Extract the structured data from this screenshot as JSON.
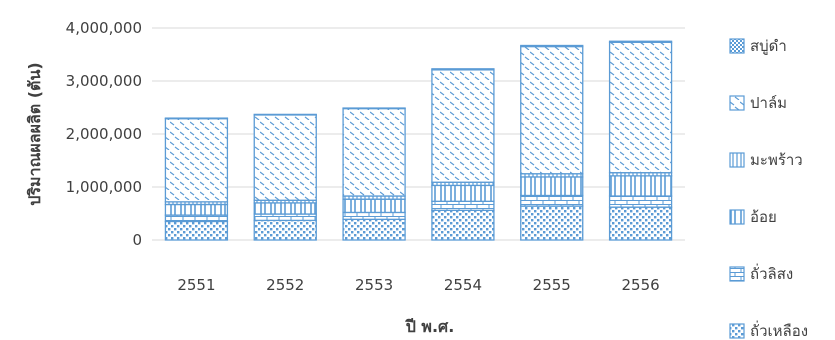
{
  "chart_data": {
    "type": "bar",
    "stacked": true,
    "title": "",
    "xlabel": "ปี พ.ศ.",
    "ylabel": "ปริมาณผลผลิต (ตัน)",
    "ylim": [
      0,
      4000000
    ],
    "yticks": [
      0,
      1000000,
      2000000,
      3000000,
      4000000
    ],
    "ytick_labels": [
      "0",
      "1,000,000",
      "2,000,000",
      "3,000,000",
      "4,000,000"
    ],
    "grid": true,
    "legend_position": "right",
    "categories": [
      "2551",
      "2552",
      "2553",
      "2554",
      "2555",
      "2556"
    ],
    "series": [
      {
        "name": "ถั่วเหลือง",
        "pattern": "dots",
        "values": [
          350000,
          370000,
          390000,
          560000,
          640000,
          620000
        ]
      },
      {
        "name": "ถั่วลิสง",
        "pattern": "bricks",
        "values": [
          120000,
          120000,
          130000,
          170000,
          200000,
          210000
        ]
      },
      {
        "name": "อ้อย",
        "pattern": "vertical",
        "values": [
          200000,
          210000,
          250000,
          300000,
          350000,
          380000
        ]
      },
      {
        "name": "มะพร้าว",
        "pattern": "thin-vertical",
        "values": [
          50000,
          50000,
          60000,
          60000,
          60000,
          60000
        ]
      },
      {
        "name": "ปาล์ม",
        "pattern": "diagonal",
        "values": [
          1570000,
          1610000,
          1650000,
          2120000,
          2400000,
          2460000
        ]
      },
      {
        "name": "สบู่ดำ",
        "pattern": "checker",
        "values": [
          10000,
          10000,
          10000,
          20000,
          20000,
          20000
        ]
      }
    ],
    "legend_order": [
      "สบู่ดำ",
      "ปาล์ม",
      "มะพร้าว",
      "อ้อย",
      "ถั่วลิสง",
      "ถั่วเหลือง"
    ],
    "colors": {
      "stroke": "#5B9BD5",
      "mark": "#5B9BD5",
      "fill": "#ffffff",
      "grid": "#d9d9d9",
      "text": "#404040"
    }
  }
}
